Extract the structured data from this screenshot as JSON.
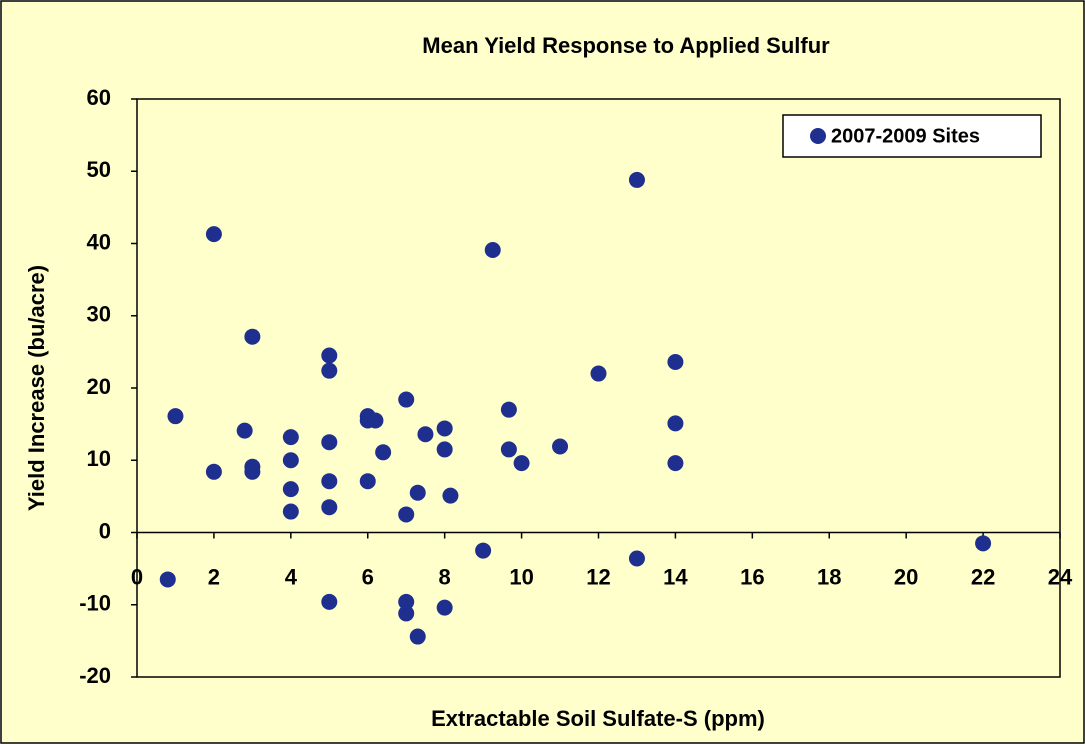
{
  "chart_data": {
    "type": "scatter",
    "title": "Mean Yield Response to Applied Sulfur",
    "x_label": "Extractable Soil Sulfate-S (ppm)",
    "y_label": "Yield Increase (bu/acre)",
    "xlim": [
      0,
      24
    ],
    "xticks": [
      0,
      2,
      4,
      6,
      8,
      10,
      12,
      14,
      16,
      18,
      20,
      22,
      24
    ],
    "ylim": [
      -20,
      60
    ],
    "yticks": [
      -20,
      -10,
      0,
      10,
      20,
      30,
      40,
      50,
      60
    ],
    "legend": "top-right",
    "series": [
      {
        "name": "2007-2009 Sites",
        "color": "#1f2f8f",
        "x": [
          0.8,
          1.0,
          2.0,
          2.0,
          2.8,
          3.0,
          3.0,
          3.0,
          4.0,
          4.0,
          4.0,
          4.0,
          5.0,
          5.0,
          5.0,
          5.0,
          5.0,
          5.0,
          6.0,
          6.0,
          6.2,
          6.0,
          6.4,
          7.0,
          7.0,
          7.0,
          7.0,
          7.3,
          7.3,
          7.5,
          8.0,
          8.0,
          8.15,
          8.0,
          9.0,
          9.25,
          9.67,
          9.67,
          10.0,
          11.0,
          12.0,
          13.0,
          13.0,
          14.0,
          14.0,
          14.0,
          22.0
        ],
        "values": [
          -6.5,
          16.1,
          8.4,
          41.3,
          14.1,
          9.1,
          8.4,
          27.1,
          13.2,
          10.0,
          6.0,
          2.9,
          24.5,
          22.4,
          12.5,
          7.1,
          3.5,
          -9.6,
          16.1,
          15.5,
          15.5,
          7.1,
          11.1,
          18.4,
          2.5,
          -9.6,
          -11.2,
          5.5,
          -14.4,
          13.6,
          14.4,
          11.5,
          5.1,
          -10.4,
          -2.5,
          39.1,
          17.0,
          11.5,
          9.6,
          11.9,
          22.0,
          48.8,
          -3.6,
          23.6,
          15.1,
          9.6,
          -1.5
        ]
      }
    ]
  }
}
